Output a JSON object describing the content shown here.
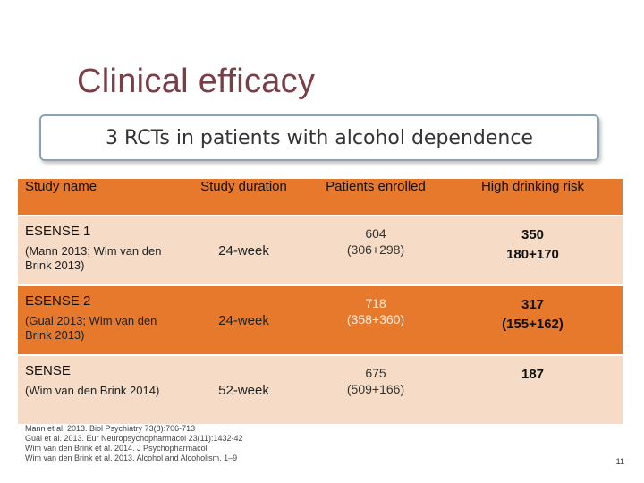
{
  "slide": {
    "title": "Clinical efficacy",
    "subtitle": "3 RCTs in patients with alcohol dependence",
    "page_number": "11"
  },
  "table": {
    "headers": [
      "Study name",
      "Study duration",
      "Patients enrolled",
      "High drinking risk"
    ],
    "rows": [
      {
        "name": "ESENSE 1",
        "ref": "(Mann 2013; Wim van den Brink 2013)",
        "duration": "24-week",
        "enrolled": "604\n(306+298)",
        "risk": "350\n180+170"
      },
      {
        "name": "ESENSE 2",
        "ref": "(Gual 2013; Wim van den Brink 2013)",
        "duration": "24-week",
        "enrolled": "718\n(358+360)",
        "risk": "317\n(155+162)"
      },
      {
        "name": "SENSE",
        "ref": "(Wim van den Brink 2014)",
        "duration": "52-week",
        "enrolled": "675\n(509+166)",
        "risk": "187"
      }
    ]
  },
  "references": [
    "Mann et al. 2013. Biol Psychiatry 73(8):706-713",
    "Gual et al. 2013. Eur Neuropsychopharmacol 23(11):1432-42",
    "Wim van den Brink et al. 2014. J Psychopharmacol",
    "Wim van den Brink et al. 2013. Alcohol and Alcoholism. 1–9"
  ],
  "colors": {
    "accent": "#e6792b",
    "light_row": "#f6dcc6",
    "title": "#7a3e46",
    "box_border": "#87a5b3"
  }
}
